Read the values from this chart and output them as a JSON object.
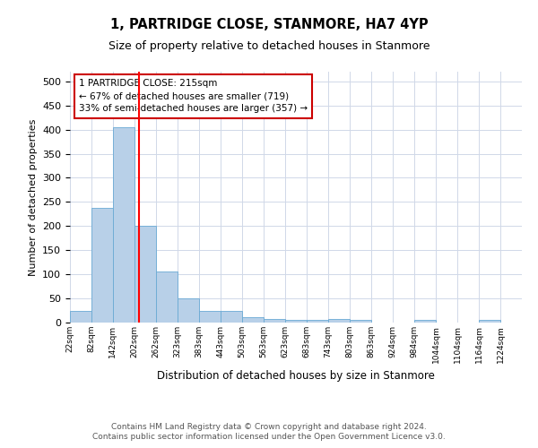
{
  "title": "1, PARTRIDGE CLOSE, STANMORE, HA7 4YP",
  "subtitle": "Size of property relative to detached houses in Stanmore",
  "xlabel": "Distribution of detached houses by size in Stanmore",
  "ylabel": "Number of detached properties",
  "bar_color": "#b8d0e8",
  "bar_edge_color": "#6aaad4",
  "background_color": "#ffffff",
  "grid_color": "#d0d8e8",
  "bin_edges": [
    22,
    82,
    142,
    202,
    262,
    323,
    383,
    443,
    503,
    563,
    623,
    683,
    743,
    803,
    863,
    924,
    984,
    1044,
    1104,
    1164,
    1224
  ],
  "bar_heights": [
    25,
    237,
    405,
    200,
    105,
    50,
    24,
    24,
    12,
    8,
    5,
    5,
    8,
    5,
    0,
    0,
    5,
    0,
    0,
    5
  ],
  "tick_labels": [
    "22sqm",
    "82sqm",
    "142sqm",
    "202sqm",
    "262sqm",
    "323sqm",
    "383sqm",
    "443sqm",
    "503sqm",
    "563sqm",
    "623sqm",
    "683sqm",
    "743sqm",
    "803sqm",
    "863sqm",
    "924sqm",
    "984sqm",
    "1044sqm",
    "1104sqm",
    "1164sqm",
    "1224sqm"
  ],
  "red_line_x": 215,
  "annotation_text": "1 PARTRIDGE CLOSE: 215sqm\n← 67% of detached houses are smaller (719)\n33% of semi-detached houses are larger (357) →",
  "annotation_box_color": "#ffffff",
  "annotation_border_color": "#cc0000",
  "ylim": [
    0,
    520
  ],
  "yticks": [
    0,
    50,
    100,
    150,
    200,
    250,
    300,
    350,
    400,
    450,
    500
  ],
  "footer_line1": "Contains HM Land Registry data © Crown copyright and database right 2024.",
  "footer_line2": "Contains public sector information licensed under the Open Government Licence v3.0."
}
